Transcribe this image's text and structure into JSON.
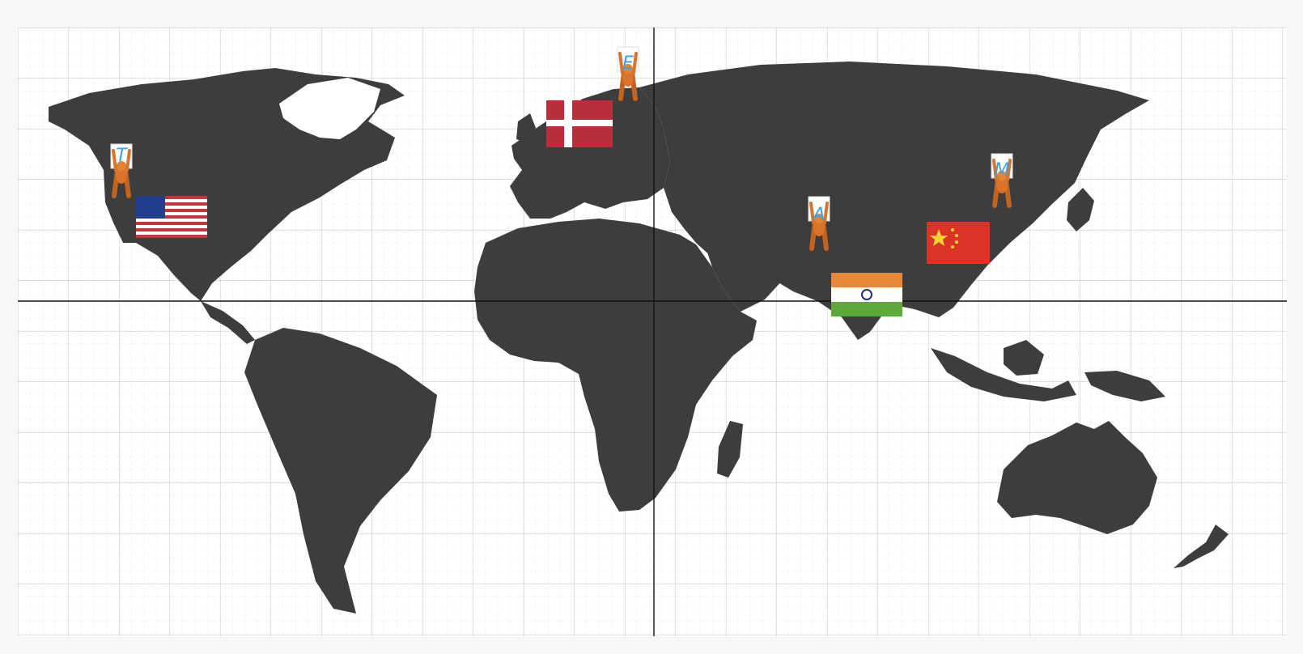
{
  "map": {
    "land_color": "#3d3d3d",
    "background_color": "#ffffff",
    "grid_color": "#c9c9c9",
    "axis_color": "#111111"
  },
  "markers": [
    {
      "id": "usa",
      "label": "T",
      "flag": "us-flag-icon"
    },
    {
      "id": "denmark",
      "label": "E",
      "flag": "denmark-flag-icon"
    },
    {
      "id": "india",
      "label": "A",
      "flag": "india-flag-icon"
    },
    {
      "id": "china",
      "label": "M",
      "flag": "china-flag-icon"
    }
  ]
}
